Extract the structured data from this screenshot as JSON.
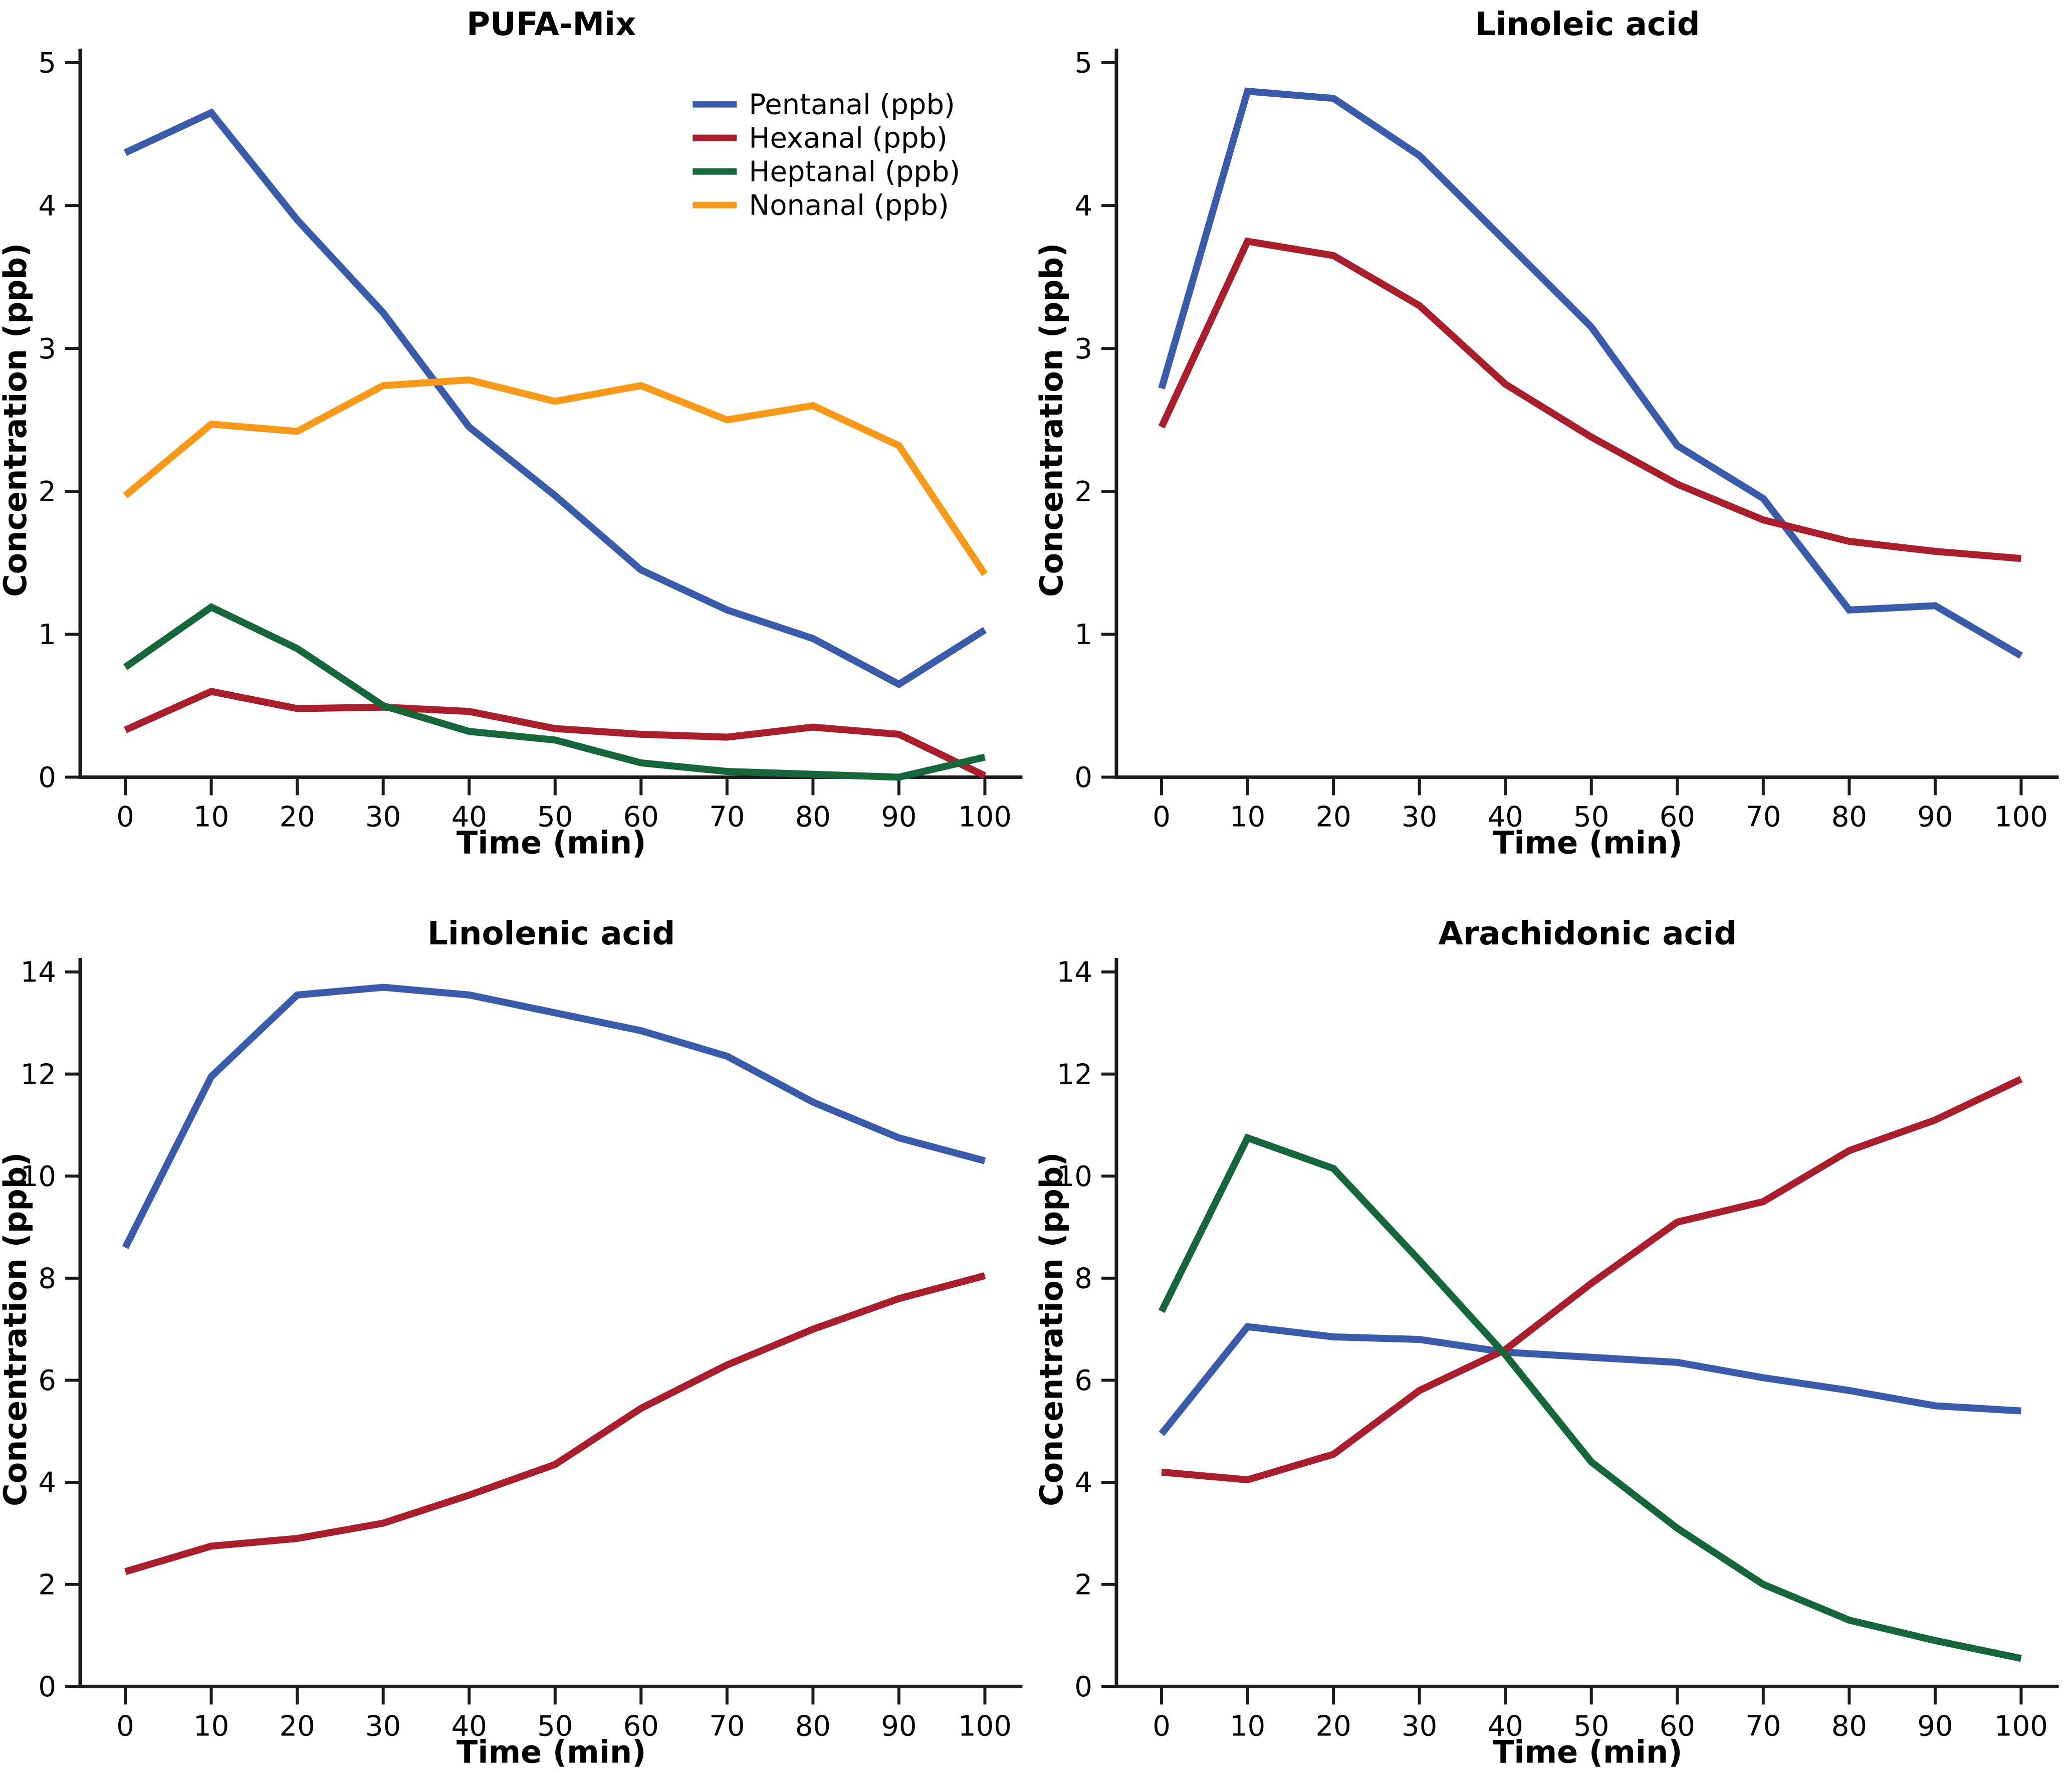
{
  "page": {
    "background": "#ffffff"
  },
  "palette": {
    "blue": "#3A5BA9",
    "red": "#A81E2C",
    "green": "#17663A",
    "orange": "#F79A1C",
    "axis": "#1A1A1A",
    "text": "#000000"
  },
  "chart_data": [
    {
      "type": "line",
      "title": "PUFA-Mix",
      "xlabel": "Time (min)",
      "ylabel": "Concentration (ppb)",
      "x": [
        0,
        10,
        20,
        30,
        40,
        50,
        60,
        70,
        80,
        90,
        100
      ],
      "xlim": [
        0,
        100
      ],
      "ylim": [
        0,
        5
      ],
      "xticks": [
        0,
        10,
        20,
        30,
        40,
        50,
        60,
        70,
        80,
        90,
        100
      ],
      "yticks": [
        0,
        1,
        2,
        3,
        4,
        5
      ],
      "grid": false,
      "legend_position": "top-right",
      "series": [
        {
          "name": "Pentanal (ppb)",
          "color": "blue",
          "values": [
            4.37,
            4.65,
            3.9,
            3.25,
            2.45,
            1.97,
            1.45,
            1.17,
            0.97,
            0.65,
            1.03
          ]
        },
        {
          "name": "Hexanal (ppb)",
          "color": "red",
          "values": [
            0.33,
            0.6,
            0.48,
            0.49,
            0.46,
            0.34,
            0.3,
            0.28,
            0.35,
            0.3,
            0.01
          ]
        },
        {
          "name": "Heptanal (ppb)",
          "color": "green",
          "values": [
            0.77,
            1.19,
            0.9,
            0.5,
            0.32,
            0.26,
            0.1,
            0.04,
            0.02,
            0.0,
            0.14
          ]
        },
        {
          "name": "Nonanal (ppb)",
          "color": "orange",
          "values": [
            1.97,
            2.47,
            2.42,
            2.74,
            2.78,
            2.63,
            2.74,
            2.5,
            2.6,
            2.32,
            1.42
          ]
        }
      ]
    },
    {
      "type": "line",
      "title": "Linoleic acid",
      "xlabel": "Time (min)",
      "ylabel": "Concentration (ppb)",
      "x": [
        0,
        10,
        20,
        30,
        40,
        50,
        60,
        70,
        80,
        90,
        100
      ],
      "xlim": [
        0,
        100
      ],
      "ylim": [
        0,
        5
      ],
      "xticks": [
        0,
        10,
        20,
        30,
        40,
        50,
        60,
        70,
        80,
        90,
        100
      ],
      "yticks": [
        0,
        1,
        2,
        3,
        4,
        5
      ],
      "grid": false,
      "legend_position": null,
      "series": [
        {
          "name": "Pentanal (ppb)",
          "color": "blue",
          "values": [
            2.72,
            4.8,
            4.75,
            4.35,
            3.75,
            3.15,
            2.32,
            1.95,
            1.17,
            1.2,
            0.85
          ]
        },
        {
          "name": "Hexanal (ppb)",
          "color": "red",
          "values": [
            2.45,
            3.75,
            3.65,
            3.3,
            2.75,
            2.38,
            2.05,
            1.8,
            1.65,
            1.58,
            1.53
          ]
        }
      ]
    },
    {
      "type": "line",
      "title": "Linolenic acid",
      "xlabel": "Time (min)",
      "ylabel": "Concentration (ppb)",
      "x": [
        0,
        10,
        20,
        30,
        40,
        50,
        60,
        70,
        80,
        90,
        100
      ],
      "xlim": [
        0,
        100
      ],
      "ylim": [
        0,
        14
      ],
      "xticks": [
        0,
        10,
        20,
        30,
        40,
        50,
        60,
        70,
        80,
        90,
        100
      ],
      "yticks": [
        0,
        2,
        4,
        6,
        8,
        10,
        12,
        14
      ],
      "grid": false,
      "legend_position": null,
      "series": [
        {
          "name": "Pentanal (ppb)",
          "color": "blue",
          "values": [
            8.6,
            11.95,
            13.55,
            13.7,
            13.55,
            13.2,
            12.85,
            12.35,
            11.45,
            10.75,
            10.3
          ]
        },
        {
          "name": "Hexanal (ppb)",
          "color": "red",
          "values": [
            2.25,
            2.75,
            2.9,
            3.2,
            3.75,
            4.35,
            5.45,
            6.3,
            7.0,
            7.6,
            8.05
          ]
        }
      ]
    },
    {
      "type": "line",
      "title": "Arachidonic acid",
      "xlabel": "Time (min)",
      "ylabel": "Concentration (ppb)",
      "x": [
        0,
        10,
        20,
        30,
        40,
        50,
        60,
        70,
        80,
        90,
        100
      ],
      "xlim": [
        0,
        100
      ],
      "ylim": [
        0,
        14
      ],
      "xticks": [
        0,
        10,
        20,
        30,
        40,
        50,
        60,
        70,
        80,
        90,
        100
      ],
      "yticks": [
        0,
        2,
        4,
        6,
        8,
        10,
        12,
        14
      ],
      "grid": false,
      "legend_position": null,
      "series": [
        {
          "name": "Pentanal (ppb)",
          "color": "blue",
          "values": [
            4.95,
            7.05,
            6.85,
            6.8,
            6.55,
            6.45,
            6.35,
            6.05,
            5.8,
            5.5,
            5.4
          ]
        },
        {
          "name": "Hexanal (ppb)",
          "color": "red",
          "values": [
            4.2,
            4.05,
            4.55,
            5.8,
            6.6,
            7.9,
            9.1,
            9.5,
            10.5,
            11.1,
            11.9
          ]
        },
        {
          "name": "Heptanal (ppb)",
          "color": "green",
          "values": [
            7.35,
            10.75,
            10.15,
            8.35,
            6.5,
            4.4,
            3.1,
            2.0,
            1.3,
            0.9,
            0.55
          ]
        }
      ]
    }
  ]
}
